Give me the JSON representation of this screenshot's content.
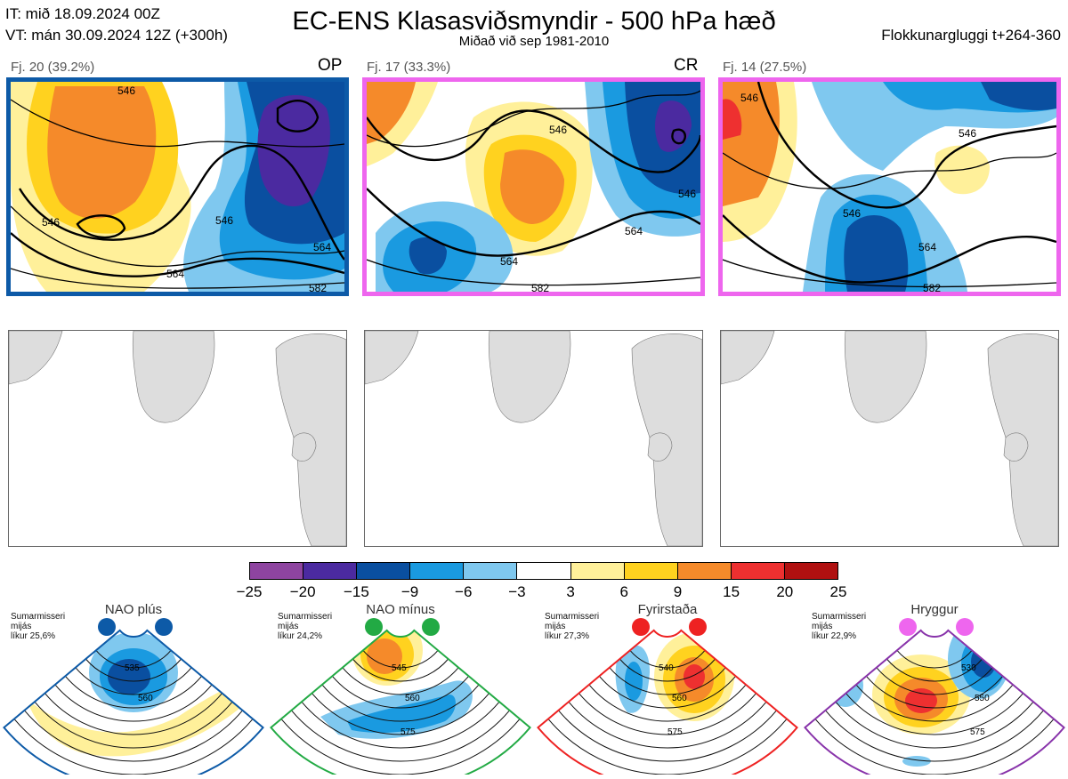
{
  "header": {
    "it_line": "IT: mið 18.09.2024 00Z",
    "vt_line": "VT: mán 30.09.2024 12Z  (+300h)",
    "title": "EC-ENS Klasasviðsmyndir - 500 hPa hæð",
    "subtitle": "Miðað við sep 1981-2010",
    "window": "Flokkunargluggi t+264-360"
  },
  "clusters": [
    {
      "label": "Fj. 20 (39.2%)",
      "tag": "OP",
      "border_color": "#0d5aa7",
      "contours": [
        "546",
        "546",
        "564",
        "546",
        "582",
        "564"
      ]
    },
    {
      "label": "Fj. 17 (33.3%)",
      "tag": "CR",
      "border_color": "#ee66ee",
      "contours": [
        "546",
        "546",
        "564",
        "564",
        "582"
      ]
    },
    {
      "label": "Fj. 14 (27.5%)",
      "tag": "",
      "border_color": "#ee66ee",
      "contours": [
        "546",
        "546",
        "546",
        "564",
        "582"
      ]
    }
  ],
  "colorbar": {
    "colors": [
      "#8e44a0",
      "#4b2aa0",
      "#0a4fa0",
      "#1a9ae0",
      "#7fc8ef",
      "#ffffff",
      "#fff09a",
      "#ffd21f",
      "#f58a2a",
      "#ee3030",
      "#b01010"
    ],
    "ticks": [
      "−25",
      "−20",
      "−15",
      "−9",
      "−6",
      "−3",
      "3",
      "6",
      "9",
      "15",
      "20",
      "25"
    ]
  },
  "regimes": [
    {
      "name": "NAO plús",
      "dot_color": "#0d5aa7",
      "border_color": "#0d5aa7",
      "info": [
        "Sumarmisseri",
        "mijás",
        "líkur 25,6%"
      ],
      "contours": [
        "535",
        "560"
      ]
    },
    {
      "name": "NAO mínus",
      "dot_color": "#22aa44",
      "border_color": "#22aa44",
      "info": [
        "Sumarmisseri",
        "mijás",
        "líkur 24,2%"
      ],
      "contours": [
        "545",
        "560",
        "575"
      ]
    },
    {
      "name": "Fyrirstaða",
      "dot_color": "#ee2222",
      "border_color": "#ee2222",
      "info": [
        "Sumarmisseri",
        "mijás",
        "líkur 27,3%"
      ],
      "contours": [
        "540",
        "560",
        "575"
      ]
    },
    {
      "name": "Hryggur",
      "dot_color": "#ee66ee",
      "border_color": "#8833aa",
      "info": [
        "Sumarmisseri",
        "mijás",
        "líkur 22,9%"
      ],
      "contours": [
        "530",
        "550",
        "575"
      ]
    }
  ]
}
